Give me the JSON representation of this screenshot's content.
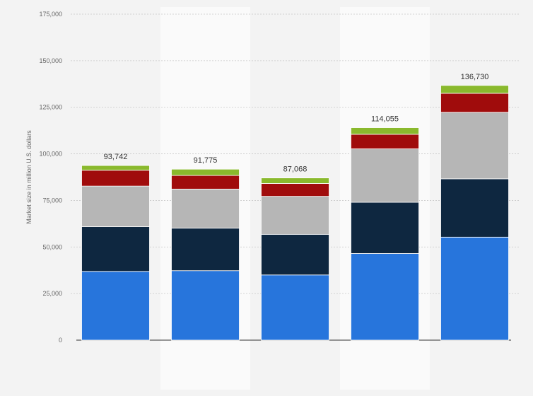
{
  "chart_data": {
    "type": "bar",
    "stacked": true,
    "title": "",
    "xlabel": "",
    "ylabel": "Market size in million U.S. dollars",
    "ylim": [
      0,
      175000
    ],
    "yticks": [
      0,
      25000,
      50000,
      75000,
      100000,
      125000,
      150000,
      175000
    ],
    "ytick_labels": [
      "0",
      "25,000",
      "50,000",
      "75,000",
      "100,000",
      "125,000",
      "150,000",
      "175,000"
    ],
    "categories": [
      "",
      "",
      "",
      "",
      ""
    ],
    "series": [
      {
        "name": "",
        "color": "#2775dc",
        "values": [
          36900,
          37300,
          35000,
          46500,
          55300
        ]
      },
      {
        "name": "",
        "color": "#0e2740",
        "values": [
          24000,
          22800,
          21800,
          27500,
          31300
        ]
      },
      {
        "name": "",
        "color": "#b6b6b6",
        "values": [
          21800,
          21000,
          20400,
          28700,
          35700
        ]
      },
      {
        "name": "",
        "color": "#a00c0c",
        "values": [
          8500,
          7300,
          6900,
          7800,
          10200
        ]
      },
      {
        "name": "",
        "color": "#8ab92d",
        "values": [
          2542,
          3375,
          2968,
          3555,
          4230
        ]
      }
    ],
    "totals": [
      93742,
      91775,
      87068,
      114055,
      136730
    ],
    "total_labels": [
      "93,742",
      "91,775",
      "87,068",
      "114,055",
      "136,730"
    ],
    "grid": true,
    "legend": "none"
  }
}
